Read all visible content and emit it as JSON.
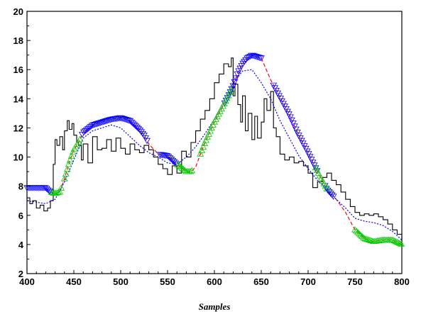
{
  "chart_data": {
    "type": "line",
    "title": "",
    "xlabel": "Samples",
    "ylabel": "",
    "xlim": [
      400,
      800
    ],
    "ylim": [
      2,
      20
    ],
    "x_ticks": [
      400,
      450,
      500,
      550,
      600,
      650,
      700,
      750,
      800
    ],
    "y_ticks": [
      2,
      4,
      6,
      8,
      10,
      12,
      14,
      16,
      18,
      20
    ],
    "x_tick_labels": [
      "400",
      "450",
      "500",
      "550",
      "600",
      "650",
      "700",
      "750",
      "800"
    ],
    "y_tick_labels": [
      "2",
      "4",
      "6",
      "8",
      "10",
      "12",
      "14",
      "16",
      "18",
      "20"
    ],
    "grid": false,
    "legend": "none",
    "series": [
      {
        "style": "solid",
        "color": "#000000",
        "x": [
          400,
          403,
          406,
          410,
          414,
          418,
          422,
          425,
          428,
          430,
          432,
          435,
          438,
          440,
          443,
          445,
          448,
          450,
          453,
          455,
          458,
          460,
          465,
          470,
          475,
          480,
          485,
          490,
          495,
          500,
          505,
          510,
          515,
          520,
          525,
          530,
          535,
          540,
          545,
          550,
          555,
          560,
          565,
          570,
          575,
          580,
          585,
          590,
          595,
          600,
          605,
          610,
          615,
          618,
          620,
          622,
          625,
          628,
          630,
          633,
          636,
          640,
          643,
          646,
          650,
          653,
          656,
          660,
          663,
          666,
          670,
          675,
          680,
          685,
          690,
          695,
          700,
          705,
          710,
          715,
          720,
          725,
          730,
          735,
          740,
          745,
          750,
          755,
          760,
          765,
          770,
          775,
          780,
          785,
          790,
          795,
          800
        ],
        "y": [
          7.2,
          6.8,
          7.0,
          6.5,
          6.7,
          6.3,
          6.5,
          7.0,
          9.5,
          11.2,
          10.8,
          11.4,
          10.5,
          11.8,
          12.5,
          11.9,
          12.3,
          11.5,
          11.0,
          10.8,
          9.8,
          10.9,
          9.6,
          11.4,
          10.5,
          10.6,
          11.2,
          10.4,
          11.3,
          10.6,
          10.2,
          10.9,
          10.5,
          10.3,
          10.8,
          10.5,
          10.0,
          9.5,
          9.2,
          8.8,
          9.4,
          8.9,
          10.4,
          10.0,
          11.0,
          11.8,
          12.6,
          13.2,
          14.0,
          15.1,
          15.7,
          16.4,
          16.2,
          16.8,
          14.2,
          15.0,
          13.6,
          12.4,
          14.2,
          11.8,
          13.0,
          11.2,
          12.8,
          11.3,
          12.4,
          14.0,
          13.2,
          14.5,
          12.0,
          11.4,
          10.2,
          9.8,
          10.0,
          9.6,
          9.7,
          9.4,
          8.9,
          7.9,
          8.3,
          8.6,
          8.9,
          8.4,
          8.1,
          7.6,
          7.1,
          6.6,
          6.2,
          6.0,
          6.1,
          6.0,
          6.1,
          5.9,
          5.7,
          5.4,
          5.0,
          4.7,
          4.2
        ]
      },
      {
        "style": "dashed",
        "color": "#ff0000",
        "x": [
          420,
          425,
          430,
          435,
          440,
          445,
          450,
          455,
          460,
          470,
          480,
          490,
          500,
          505,
          510,
          515,
          520,
          525,
          530,
          540,
          550,
          560,
          570,
          575,
          580,
          585,
          590,
          600,
          610,
          615,
          620,
          625,
          630,
          635,
          640,
          650,
          660,
          670,
          680,
          690,
          700,
          710,
          720,
          730,
          740,
          750,
          760,
          770,
          780,
          790,
          800
        ],
        "y": [
          7.9,
          7.6,
          7.5,
          7.6,
          8.5,
          9.6,
          10.5,
          11.0,
          11.7,
          12.2,
          12.4,
          12.6,
          12.7,
          12.6,
          12.5,
          12.2,
          11.9,
          11.5,
          10.9,
          10.2,
          10.1,
          9.5,
          9.0,
          9.0,
          9.3,
          10.2,
          11.0,
          12.4,
          13.6,
          14.2,
          14.9,
          15.8,
          16.4,
          16.8,
          17.0,
          16.8,
          15.3,
          14.1,
          12.9,
          11.5,
          10.3,
          9.0,
          7.8,
          7.1,
          6.2,
          5.0,
          4.4,
          4.2,
          4.3,
          4.3,
          4.0
        ]
      },
      {
        "style": "dotted",
        "color": "#0000ff",
        "x": [
          400,
          410,
          420,
          430,
          440,
          450,
          460,
          470,
          480,
          490,
          500,
          510,
          520,
          530,
          540,
          550,
          560,
          570,
          580,
          590,
          600,
          610,
          620,
          630,
          640,
          650,
          660,
          670,
          680,
          690,
          700,
          710,
          720,
          730,
          740,
          750,
          760,
          770,
          780,
          790,
          800
        ],
        "y": [
          7.0,
          6.9,
          6.8,
          7.1,
          8.3,
          9.8,
          11.3,
          11.8,
          12.0,
          12.2,
          12.0,
          11.4,
          10.8,
          10.3,
          10.0,
          9.6,
          9.5,
          10.0,
          10.7,
          11.6,
          12.6,
          13.8,
          15.1,
          15.9,
          16.0,
          15.1,
          14.0,
          12.5,
          11.3,
          10.1,
          9.2,
          8.4,
          7.8,
          7.1,
          6.5,
          5.8,
          5.6,
          5.5,
          5.3,
          4.9,
          4.3
        ]
      }
    ],
    "markers": [
      {
        "shape": "triangle-down",
        "color": "#0000ff",
        "segments": [
          [
            400,
            426
          ],
          [
            459,
            528
          ],
          [
            542,
            561
          ],
          [
            611,
            651
          ],
          [
            663,
            710
          ],
          [
            718,
            727
          ]
        ]
      },
      {
        "shape": "triangle-up",
        "color": "#00cc00",
        "segments": [
          [
            426,
            437
          ],
          [
            440,
            457
          ],
          [
            561,
            576
          ],
          [
            585,
            619
          ],
          [
            708,
            720
          ],
          [
            750,
            800
          ]
        ]
      }
    ]
  }
}
